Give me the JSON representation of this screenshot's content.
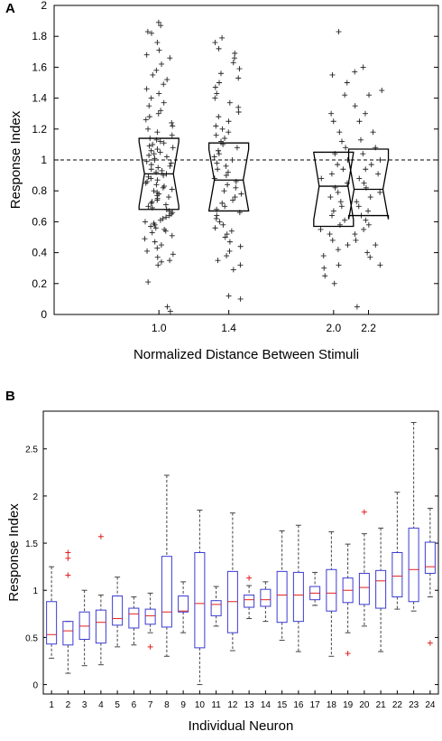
{
  "chart_data": [
    {
      "panel": "A",
      "type": "box",
      "panel_label": "A",
      "xlabel": "Normalized Distance Between Stimuli",
      "ylabel": "Response Index",
      "xlim": [
        0.4,
        2.6
      ],
      "ylim": [
        0,
        2
      ],
      "x_ticks": [
        "1.0",
        "1.4",
        "2.0",
        "2.2"
      ],
      "y_ticks": [
        "0",
        "0.2",
        "0.4",
        "0.6",
        "0.8",
        "1",
        "1.2",
        "1.4",
        "1.6",
        "1.8",
        "2"
      ],
      "reference_line": 1.0,
      "grid": false,
      "boxes": [
        {
          "x": 1.0,
          "q1": 0.68,
          "median": 0.91,
          "q3": 1.14
        },
        {
          "x": 1.4,
          "q1": 0.67,
          "median": 0.87,
          "q3": 1.11
        },
        {
          "x": 2.0,
          "q1": 0.57,
          "median": 0.83,
          "q3": 1.05
        },
        {
          "x": 2.2,
          "q1": 0.64,
          "median": 0.81,
          "q3": 1.07
        }
      ],
      "scatter": [
        {
          "x": 1.0,
          "values": [
            1.89,
            1.87,
            1.83,
            1.82,
            1.76,
            1.71,
            1.68,
            1.66,
            1.62,
            1.58,
            1.55,
            1.52,
            1.49,
            1.46,
            1.43,
            1.4,
            1.37,
            1.35,
            1.32,
            1.3,
            1.28,
            1.26,
            1.24,
            1.22,
            1.2,
            1.18,
            1.16,
            1.14,
            1.13,
            1.12,
            1.11,
            1.1,
            1.09,
            1.08,
            1.07,
            1.06,
            1.05,
            1.04,
            1.03,
            1.02,
            1.01,
            1.0,
            0.99,
            0.98,
            0.97,
            0.96,
            0.95,
            0.94,
            0.93,
            0.92,
            0.91,
            0.9,
            0.89,
            0.88,
            0.87,
            0.86,
            0.85,
            0.84,
            0.83,
            0.82,
            0.81,
            0.8,
            0.79,
            0.78,
            0.77,
            0.76,
            0.75,
            0.74,
            0.73,
            0.72,
            0.71,
            0.7,
            0.69,
            0.68,
            0.67,
            0.66,
            0.65,
            0.64,
            0.63,
            0.62,
            0.61,
            0.6,
            0.59,
            0.58,
            0.57,
            0.56,
            0.55,
            0.54,
            0.53,
            0.51,
            0.49,
            0.47,
            0.45,
            0.43,
            0.41,
            0.39,
            0.37,
            0.35,
            0.34,
            0.32,
            0.21,
            0.05,
            0.02
          ]
        },
        {
          "x": 1.4,
          "values": [
            1.79,
            1.76,
            1.72,
            1.69,
            1.66,
            1.63,
            1.59,
            1.56,
            1.53,
            1.5,
            1.47,
            1.43,
            1.4,
            1.37,
            1.34,
            1.31,
            1.28,
            1.25,
            1.22,
            1.2,
            1.18,
            1.16,
            1.14,
            1.12,
            1.1,
            1.08,
            1.06,
            1.04,
            1.02,
            1.0,
            0.98,
            0.96,
            0.94,
            0.92,
            0.9,
            0.88,
            0.86,
            0.84,
            0.82,
            0.8,
            0.78,
            0.76,
            0.74,
            0.72,
            0.7,
            0.68,
            0.66,
            0.64,
            0.62,
            0.6,
            0.58,
            0.56,
            0.54,
            0.52,
            0.5,
            0.47,
            0.44,
            0.41,
            0.38,
            0.35,
            0.32,
            0.29,
            0.12,
            0.1
          ]
        },
        {
          "x": 2.0,
          "values": [
            1.83,
            1.55,
            1.5,
            1.42,
            1.3,
            1.25,
            1.18,
            1.12,
            1.08,
            1.04,
            1.0,
            0.97,
            0.94,
            0.91,
            0.88,
            0.85,
            0.82,
            0.79,
            0.76,
            0.73,
            0.7,
            0.67,
            0.64,
            0.61,
            0.58,
            0.55,
            0.52,
            0.48,
            0.45,
            0.42,
            0.38,
            0.32,
            0.3,
            0.25,
            0.2
          ]
        },
        {
          "x": 2.2,
          "values": [
            1.6,
            1.57,
            1.45,
            1.42,
            1.35,
            1.3,
            1.25,
            1.18,
            1.13,
            1.08,
            1.04,
            1.0,
            0.97,
            0.94,
            0.91,
            0.88,
            0.85,
            0.82,
            0.79,
            0.76,
            0.73,
            0.7,
            0.67,
            0.64,
            0.61,
            0.58,
            0.55,
            0.52,
            0.48,
            0.45,
            0.4,
            0.37,
            0.32,
            0.05
          ]
        }
      ]
    },
    {
      "panel": "B",
      "type": "box",
      "panel_label": "B",
      "xlabel": "Individual Neuron",
      "ylabel": "Response Index",
      "xlim": [
        0.5,
        24.5
      ],
      "ylim": [
        -0.1,
        2.9
      ],
      "x_ticks": [
        "1",
        "2",
        "3",
        "4",
        "5",
        "6",
        "7",
        "8",
        "9",
        "10",
        "11",
        "12",
        "13",
        "14",
        "15",
        "16",
        "17",
        "18",
        "19",
        "20",
        "21",
        "22",
        "23",
        "24"
      ],
      "y_ticks": [
        "0",
        "0.5",
        "1",
        "1.5",
        "2",
        "2.5"
      ],
      "grid": false,
      "boxes": [
        {
          "x": 1,
          "min": 0.28,
          "q1": 0.43,
          "median": 0.53,
          "q3": 0.88,
          "max": 1.25,
          "outliers": []
        },
        {
          "x": 2,
          "min": 0.12,
          "q1": 0.42,
          "median": 0.57,
          "q3": 0.67,
          "max": 0.67,
          "outliers": [
            1.4,
            1.34,
            1.16
          ]
        },
        {
          "x": 3,
          "min": 0.2,
          "q1": 0.48,
          "median": 0.62,
          "q3": 0.77,
          "max": 1.0,
          "outliers": []
        },
        {
          "x": 4,
          "min": 0.21,
          "q1": 0.44,
          "median": 0.66,
          "q3": 0.79,
          "max": 0.95,
          "outliers": [
            1.57
          ]
        },
        {
          "x": 5,
          "min": 0.4,
          "q1": 0.63,
          "median": 0.7,
          "q3": 0.94,
          "max": 1.14,
          "outliers": []
        },
        {
          "x": 6,
          "min": 0.42,
          "q1": 0.6,
          "median": 0.75,
          "q3": 0.81,
          "max": 0.93,
          "outliers": []
        },
        {
          "x": 7,
          "min": 0.55,
          "q1": 0.64,
          "median": 0.73,
          "q3": 0.8,
          "max": 0.97,
          "outliers": [
            0.4
          ]
        },
        {
          "x": 8,
          "min": 0.3,
          "q1": 0.61,
          "median": 0.77,
          "q3": 1.36,
          "max": 2.22,
          "outliers": []
        },
        {
          "x": 9,
          "min": 0.55,
          "q1": 0.77,
          "median": 0.78,
          "q3": 0.94,
          "max": 1.09,
          "outliers": []
        },
        {
          "x": 10,
          "min": 0.0,
          "q1": 0.39,
          "median": 0.86,
          "q3": 1.4,
          "max": 1.85,
          "outliers": []
        },
        {
          "x": 11,
          "min": 0.62,
          "q1": 0.73,
          "median": 0.85,
          "q3": 0.89,
          "max": 1.04,
          "outliers": []
        },
        {
          "x": 12,
          "min": 0.36,
          "q1": 0.55,
          "median": 0.88,
          "q3": 1.2,
          "max": 1.82,
          "outliers": []
        },
        {
          "x": 13,
          "min": 0.7,
          "q1": 0.82,
          "median": 0.9,
          "q3": 0.95,
          "max": 1.05,
          "outliers": [
            1.13
          ]
        },
        {
          "x": 14,
          "min": 0.67,
          "q1": 0.83,
          "median": 0.9,
          "q3": 1.01,
          "max": 1.09,
          "outliers": []
        },
        {
          "x": 15,
          "min": 0.47,
          "q1": 0.66,
          "median": 0.95,
          "q3": 1.2,
          "max": 1.63,
          "outliers": []
        },
        {
          "x": 16,
          "min": 0.35,
          "q1": 0.67,
          "median": 0.95,
          "q3": 1.19,
          "max": 1.69,
          "outliers": []
        },
        {
          "x": 17,
          "min": 0.84,
          "q1": 0.9,
          "median": 0.97,
          "q3": 1.04,
          "max": 1.19,
          "outliers": []
        },
        {
          "x": 18,
          "min": 0.3,
          "q1": 0.78,
          "median": 0.97,
          "q3": 1.22,
          "max": 1.62,
          "outliers": []
        },
        {
          "x": 19,
          "min": 0.55,
          "q1": 0.87,
          "median": 1.0,
          "q3": 1.13,
          "max": 1.49,
          "outliers": [
            0.33
          ]
        },
        {
          "x": 20,
          "min": 0.62,
          "q1": 0.85,
          "median": 1.03,
          "q3": 1.18,
          "max": 1.6,
          "outliers": [
            1.83
          ]
        },
        {
          "x": 21,
          "min": 0.35,
          "q1": 0.81,
          "median": 1.1,
          "q3": 1.21,
          "max": 1.66,
          "outliers": []
        },
        {
          "x": 22,
          "min": 0.8,
          "q1": 0.93,
          "median": 1.15,
          "q3": 1.4,
          "max": 2.04,
          "outliers": []
        },
        {
          "x": 23,
          "min": 0.78,
          "q1": 0.88,
          "median": 1.22,
          "q3": 1.66,
          "max": 2.78,
          "outliers": []
        },
        {
          "x": 24,
          "min": 0.93,
          "q1": 1.18,
          "median": 1.25,
          "q3": 1.51,
          "max": 1.87,
          "outliers": [
            0.44
          ]
        }
      ]
    }
  ],
  "colors": {
    "box_A": "#000000",
    "box_B": "#3b3bd4",
    "median_B": "#e02020",
    "outlier_B": "#e02020",
    "whisker_B": "#444444"
  }
}
